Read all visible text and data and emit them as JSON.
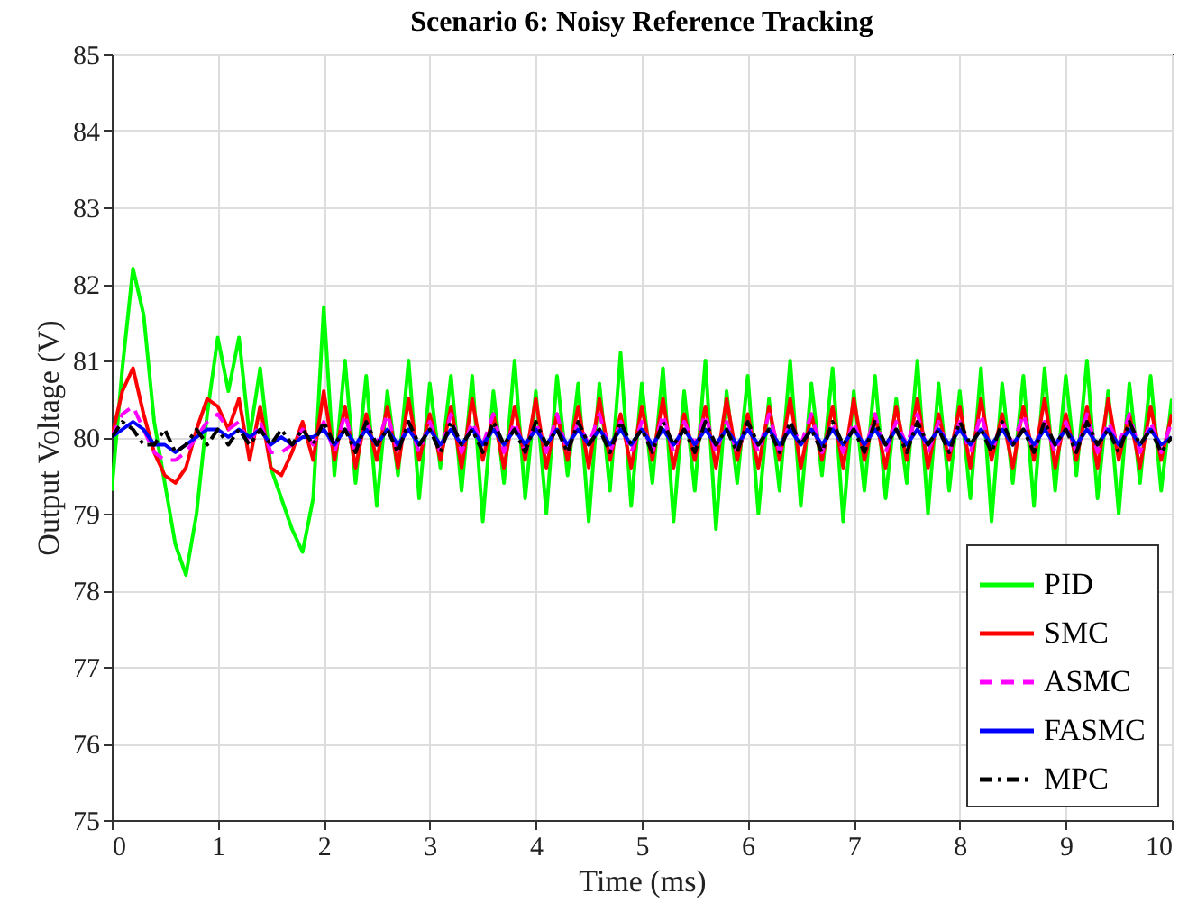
{
  "chart_data": {
    "type": "line",
    "title": "Scenario 6: Noisy Reference Tracking",
    "xlabel": "Time (ms)",
    "ylabel": "Output Voltage (V)",
    "x": [
      0,
      0.1,
      0.2,
      0.3,
      0.4,
      0.5,
      0.6,
      0.7,
      0.8,
      0.9,
      1,
      1.1,
      1.2,
      1.3,
      1.4,
      1.5,
      1.6,
      1.7,
      1.8,
      1.9,
      2,
      2.1,
      2.2,
      2.3,
      2.4,
      2.5,
      2.6,
      2.7,
      2.8,
      2.9,
      3,
      3.1,
      3.2,
      3.3,
      3.4,
      3.5,
      3.6,
      3.7,
      3.8,
      3.9,
      4,
      4.1,
      4.2,
      4.3,
      4.4,
      4.5,
      4.6,
      4.7,
      4.8,
      4.9,
      5,
      5.1,
      5.2,
      5.3,
      5.4,
      5.5,
      5.6,
      5.7,
      5.8,
      5.9,
      6,
      6.1,
      6.2,
      6.3,
      6.4,
      6.5,
      6.6,
      6.7,
      6.8,
      6.9,
      7,
      7.1,
      7.2,
      7.3,
      7.4,
      7.5,
      7.6,
      7.7,
      7.8,
      7.9,
      8,
      8.1,
      8.2,
      8.3,
      8.4,
      8.5,
      8.6,
      8.7,
      8.8,
      8.9,
      9,
      9.1,
      9.2,
      9.3,
      9.4,
      9.5,
      9.6,
      9.7,
      9.8,
      9.9,
      10
    ],
    "series": [
      {
        "name": "PID",
        "color": "#00ff00",
        "line_style": "solid",
        "values": [
          79.3,
          80.9,
          82.2,
          81.6,
          80.2,
          79.4,
          78.6,
          78.2,
          79.0,
          80.3,
          81.3,
          80.6,
          81.3,
          80.0,
          80.9,
          79.6,
          79.2,
          78.8,
          78.5,
          79.2,
          81.7,
          79.5,
          81.0,
          79.4,
          80.8,
          79.1,
          80.6,
          79.5,
          81.0,
          79.2,
          80.7,
          79.6,
          80.8,
          79.3,
          80.8,
          78.9,
          80.6,
          79.4,
          81.0,
          79.2,
          80.6,
          79.0,
          80.8,
          79.5,
          80.7,
          78.9,
          80.7,
          79.3,
          81.1,
          79.1,
          80.7,
          79.4,
          80.9,
          78.9,
          80.6,
          79.3,
          81.0,
          78.8,
          80.6,
          79.4,
          80.8,
          79.0,
          80.5,
          79.3,
          81.0,
          79.1,
          80.7,
          79.5,
          80.9,
          78.9,
          80.6,
          79.3,
          80.8,
          79.2,
          80.5,
          79.4,
          81.0,
          79.0,
          80.7,
          79.3,
          80.6,
          79.2,
          80.9,
          78.9,
          80.7,
          79.4,
          80.8,
          79.1,
          80.9,
          79.3,
          80.8,
          79.5,
          81.0,
          79.2,
          80.6,
          79.0,
          80.7,
          79.4,
          80.8,
          79.3,
          80.5
        ]
      },
      {
        "name": "SMC",
        "color": "#ff0000",
        "line_style": "solid",
        "values": [
          80.0,
          80.6,
          80.9,
          80.3,
          79.8,
          79.5,
          79.4,
          79.6,
          80.1,
          80.5,
          80.4,
          80.1,
          80.5,
          79.7,
          80.4,
          79.6,
          79.5,
          79.8,
          80.2,
          79.7,
          80.6,
          79.7,
          80.4,
          79.6,
          80.3,
          79.7,
          80.4,
          79.6,
          80.5,
          79.7,
          80.3,
          79.7,
          80.4,
          79.6,
          80.5,
          79.7,
          80.3,
          79.6,
          80.4,
          79.7,
          80.5,
          79.6,
          80.3,
          79.7,
          80.4,
          79.6,
          80.5,
          79.7,
          80.3,
          79.6,
          80.4,
          79.7,
          80.5,
          79.6,
          80.3,
          79.7,
          80.4,
          79.6,
          80.5,
          79.7,
          80.3,
          79.6,
          80.4,
          79.7,
          80.5,
          79.6,
          80.3,
          79.7,
          80.4,
          79.6,
          80.5,
          79.7,
          80.3,
          79.6,
          80.4,
          79.7,
          80.5,
          79.6,
          80.3,
          79.7,
          80.4,
          79.6,
          80.5,
          79.7,
          80.3,
          79.6,
          80.4,
          79.7,
          80.5,
          79.6,
          80.3,
          79.7,
          80.4,
          79.6,
          80.5,
          79.7,
          80.3,
          79.6,
          80.4,
          79.7,
          80.3
        ]
      },
      {
        "name": "ASMC",
        "color": "#ff00ff",
        "line_style": "dashed",
        "values": [
          80.0,
          80.3,
          80.4,
          80.1,
          79.8,
          79.7,
          79.7,
          79.8,
          80.0,
          80.2,
          80.3,
          80.1,
          80.2,
          79.9,
          80.2,
          79.8,
          79.8,
          79.9,
          80.1,
          79.9,
          80.2,
          79.8,
          80.3,
          79.8,
          80.2,
          79.9,
          80.3,
          79.8,
          80.2,
          79.8,
          80.2,
          79.8,
          80.3,
          79.8,
          80.2,
          79.9,
          80.3,
          79.8,
          80.2,
          79.8,
          80.2,
          79.8,
          80.3,
          79.8,
          80.2,
          79.9,
          80.3,
          79.8,
          80.2,
          79.8,
          80.2,
          79.8,
          80.3,
          79.8,
          80.2,
          79.9,
          80.3,
          79.8,
          80.2,
          79.8,
          80.2,
          79.8,
          80.3,
          79.8,
          80.2,
          79.9,
          80.3,
          79.8,
          80.2,
          79.8,
          80.2,
          79.8,
          80.3,
          79.8,
          80.2,
          79.9,
          80.3,
          79.8,
          80.2,
          79.8,
          80.2,
          79.8,
          80.3,
          79.8,
          80.2,
          79.9,
          80.3,
          79.8,
          80.2,
          79.8,
          80.2,
          79.8,
          80.3,
          79.8,
          80.2,
          79.9,
          80.3,
          79.8,
          80.2,
          79.8,
          80.2
        ]
      },
      {
        "name": "FASMC",
        "color": "#0000ff",
        "line_style": "solid",
        "values": [
          80.0,
          80.1,
          80.2,
          80.1,
          79.9,
          79.9,
          79.8,
          79.9,
          80.0,
          80.1,
          80.1,
          80.0,
          80.1,
          80.0,
          80.1,
          79.9,
          80.0,
          79.9,
          80.0,
          80.0,
          80.1,
          79.9,
          80.1,
          79.9,
          80.1,
          79.9,
          80.1,
          79.9,
          80.1,
          79.9,
          80.1,
          79.9,
          80.1,
          79.9,
          80.1,
          79.9,
          80.1,
          79.9,
          80.1,
          79.9,
          80.1,
          79.9,
          80.1,
          79.9,
          80.1,
          79.9,
          80.1,
          79.9,
          80.1,
          79.9,
          80.1,
          79.9,
          80.1,
          79.9,
          80.1,
          79.9,
          80.1,
          79.9,
          80.1,
          79.9,
          80.1,
          79.9,
          80.1,
          79.9,
          80.1,
          79.9,
          80.1,
          79.9,
          80.1,
          79.9,
          80.1,
          79.9,
          80.1,
          79.9,
          80.1,
          79.9,
          80.1,
          79.9,
          80.1,
          79.9,
          80.1,
          79.9,
          80.1,
          79.9,
          80.1,
          79.9,
          80.1,
          79.9,
          80.1,
          79.9,
          80.1,
          79.9,
          80.1,
          79.9,
          80.1,
          79.9,
          80.1,
          79.9,
          80.1,
          79.9,
          80.0
        ]
      },
      {
        "name": "MPC",
        "color": "#000000",
        "line_style": "dashdot",
        "values": [
          80.0,
          80.2,
          80.1,
          79.9,
          79.9,
          80.1,
          79.8,
          79.9,
          80.1,
          79.9,
          80.1,
          79.9,
          80.1,
          79.9,
          80.1,
          79.9,
          80.1,
          79.9,
          80.1,
          79.9,
          80.2,
          79.9,
          80.1,
          79.8,
          80.2,
          79.9,
          80.1,
          79.8,
          80.2,
          79.9,
          80.1,
          79.8,
          80.2,
          79.9,
          80.1,
          79.8,
          80.2,
          79.9,
          80.1,
          79.8,
          80.2,
          79.9,
          80.1,
          79.8,
          80.2,
          79.9,
          80.1,
          79.8,
          80.2,
          79.9,
          80.1,
          79.8,
          80.2,
          79.9,
          80.1,
          79.8,
          80.2,
          79.9,
          80.1,
          79.8,
          80.2,
          79.9,
          80.1,
          79.8,
          80.2,
          79.9,
          80.1,
          79.8,
          80.2,
          79.9,
          80.1,
          79.8,
          80.2,
          79.9,
          80.1,
          79.8,
          80.2,
          79.9,
          80.1,
          79.8,
          80.2,
          79.9,
          80.1,
          79.8,
          80.2,
          79.9,
          80.1,
          79.8,
          80.2,
          79.9,
          80.1,
          79.8,
          80.2,
          79.9,
          80.1,
          79.8,
          80.2,
          79.9,
          80.1,
          79.8,
          80.0
        ]
      }
    ],
    "xlim": [
      0,
      10
    ],
    "xticks": [
      0,
      1,
      2,
      3,
      4,
      5,
      6,
      7,
      8,
      9,
      10
    ],
    "ylim": [
      75,
      85
    ],
    "yticks": [
      75,
      76,
      77,
      78,
      79,
      80,
      81,
      82,
      83,
      84,
      85
    ],
    "grid": true,
    "legend": "bottom right"
  }
}
